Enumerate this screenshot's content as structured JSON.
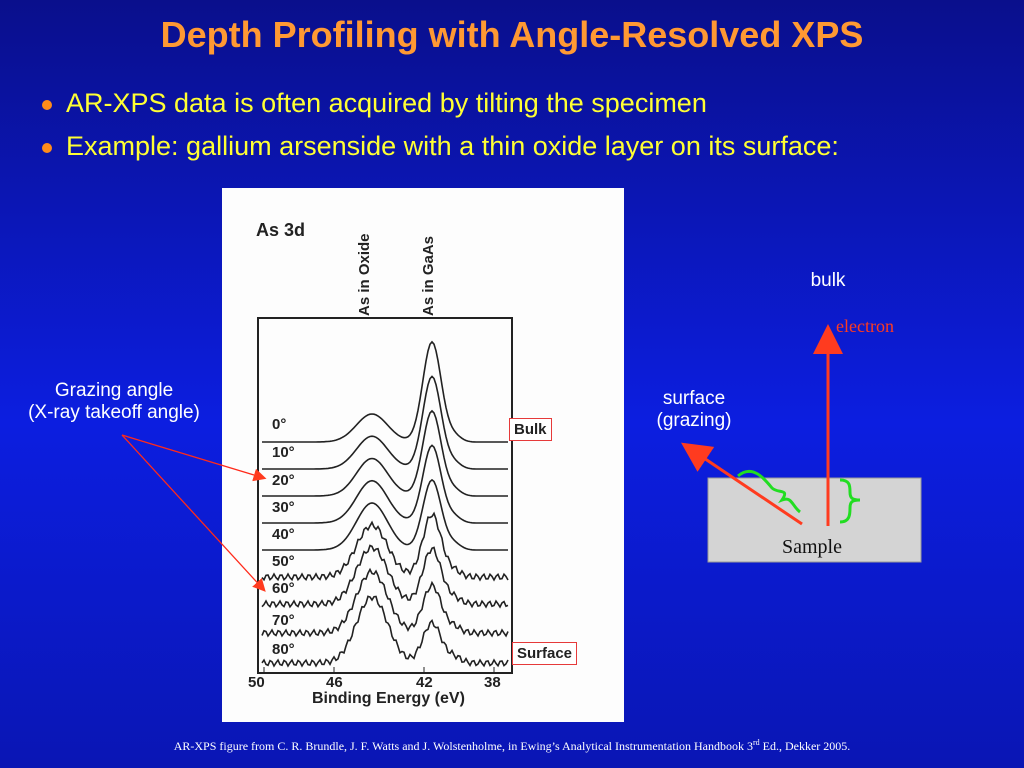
{
  "title": "Depth Profiling with Angle-Resolved XPS",
  "bullets": [
    "AR-XPS data is often acquired by tilting the specimen",
    "Example: gallium arsenside with a thin oxide layer on its surface:"
  ],
  "grazing_label": {
    "line1": "Grazing angle",
    "line2": "(X-ray takeoff angle)"
  },
  "figure": {
    "peak_title": "As 3d",
    "peak_oxide": "As in Oxide",
    "peak_gaas": "As in GaAs",
    "angles": [
      "0°",
      "10°",
      "20°",
      "30°",
      "40°",
      "50°",
      "60°",
      "70°",
      "80°"
    ],
    "bulk_box": "Bulk",
    "surface_box": "Surface",
    "x_ticks": [
      "50",
      "46",
      "42",
      "38"
    ],
    "xlabel": "Binding Energy (eV)"
  },
  "schematic": {
    "bulk": "bulk",
    "electron": "electron",
    "surface_line1": "surface",
    "surface_line2": "(grazing)",
    "sample": "Sample"
  },
  "footer": {
    "pre": "AR-XPS figure from C. R. Brundle, J. F. Watts and J. Wolstenholme, in Ewing’s Analytical Instrumentation Handbook 3",
    "sup": "rd",
    "post": " Ed., Dekker 2005."
  },
  "colors": {
    "title": "#ff9933",
    "bullet_text": "#ffff33",
    "arrow": "#ff3b1f",
    "brace": "#22dd22"
  }
}
